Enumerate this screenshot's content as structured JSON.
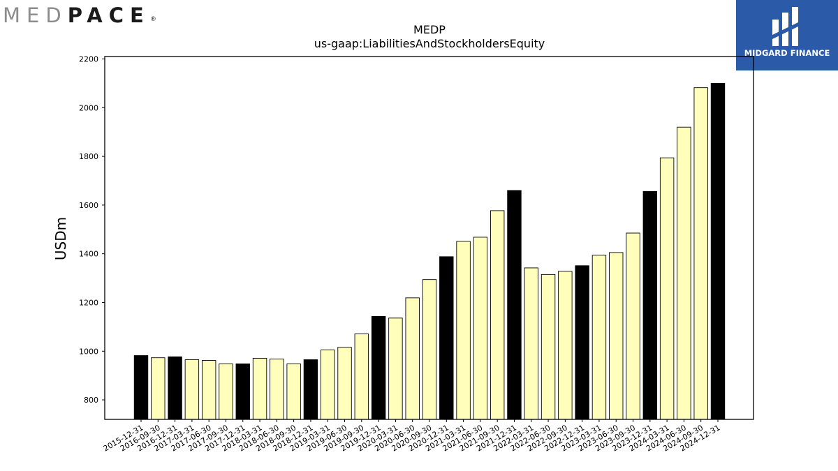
{
  "logos": {
    "left_part1": "MED",
    "left_part2": "PACE",
    "left_mark": "®",
    "right_text": "MIDGARD FINANCE"
  },
  "chart_data": {
    "type": "bar",
    "title": "MEDP",
    "subtitle": "us-gaap:LiabilitiesAndStockholdersEquity",
    "xlabel": "",
    "ylabel": "USDm",
    "ylim": [
      720,
      2210
    ],
    "yticks": [
      800,
      1000,
      1200,
      1400,
      1600,
      1800,
      2000,
      2200
    ],
    "grid": false,
    "categories": [
      "2015-12-31",
      "2016-09-30",
      "2016-12-31",
      "2017-03-31",
      "2017-06-30",
      "2017-09-30",
      "2017-12-31",
      "2018-03-31",
      "2018-06-30",
      "2018-09-30",
      "2018-12-31",
      "2019-03-31",
      "2019-06-30",
      "2019-09-30",
      "2019-12-31",
      "2020-03-31",
      "2020-06-30",
      "2020-09-30",
      "2020-12-31",
      "2021-03-31",
      "2021-06-30",
      "2021-09-30",
      "2021-12-31",
      "2022-03-31",
      "2022-06-30",
      "2022-09-30",
      "2022-12-31",
      "2023-03-31",
      "2023-06-30",
      "2023-09-30",
      "2023-12-31",
      "2024-03-31",
      "2024-06-30",
      "2024-09-30",
      "2024-12-31"
    ],
    "values": [
      982,
      973,
      977,
      965,
      962,
      948,
      948,
      971,
      968,
      948,
      965,
      1005,
      1016,
      1071,
      1143,
      1136,
      1219,
      1294,
      1388,
      1451,
      1468,
      1577,
      1660,
      1342,
      1315,
      1328,
      1351,
      1394,
      1405,
      1485,
      1656,
      1794,
      1920,
      2082,
      2100
    ],
    "annual_color": "#000000",
    "quarter_color": "#ffffbb",
    "annual_suffix": "12-31"
  }
}
